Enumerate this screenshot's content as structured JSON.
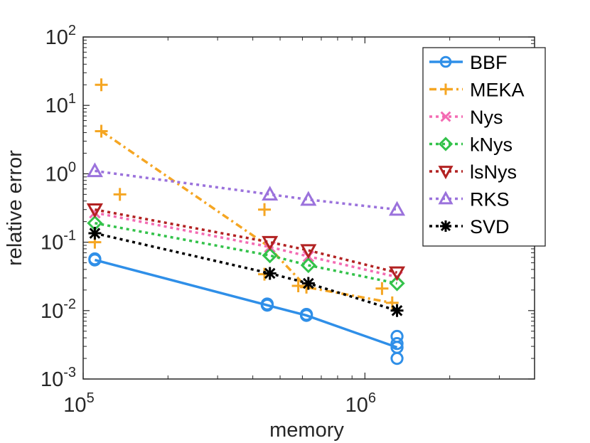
{
  "chart_data": {
    "type": "line",
    "xscale": "log",
    "yscale": "log",
    "xlabel": "memory",
    "ylabel": "relative error",
    "xlim": [
      100000,
      4000000
    ],
    "ylim": [
      0.001,
      100
    ],
    "xticks": [
      {
        "base": "10",
        "exp": "5"
      },
      {
        "base": "10",
        "exp": "6"
      }
    ],
    "yticks": [
      {
        "base": "10",
        "exp": "-3"
      },
      {
        "base": "10",
        "exp": "-2"
      },
      {
        "base": "10",
        "exp": "-1"
      },
      {
        "base": "10",
        "exp": "0"
      },
      {
        "base": "10",
        "exp": "1"
      },
      {
        "base": "10",
        "exp": "2"
      }
    ],
    "legend_position": "top-right",
    "series": [
      {
        "name": "BBF",
        "color": "#2f8fe8",
        "marker": "circle",
        "dash": "solid",
        "line_x": [
          110000,
          450000,
          620000,
          1300000
        ],
        "line_y": [
          0.055,
          0.012,
          0.0085,
          0.0029
        ],
        "scatter_x": [
          110000,
          110000,
          450000,
          450000,
          620000,
          620000,
          1300000,
          1300000,
          1300000,
          1300000
        ],
        "scatter_y": [
          0.055,
          0.057,
          0.012,
          0.0125,
          0.0085,
          0.0088,
          0.0042,
          0.0033,
          0.0029,
          0.002
        ]
      },
      {
        "name": "MEKA",
        "color": "#f5a623",
        "marker": "plus",
        "dash": "dashdot",
        "line_x": [
          116000,
          450000,
          620000,
          1250000
        ],
        "line_y": [
          4.2,
          0.09,
          0.022,
          0.013
        ],
        "scatter_x": [
          116000,
          116000,
          135000,
          110000,
          440000,
          440000,
          580000,
          620000,
          1150000,
          1250000
        ],
        "scatter_y": [
          20,
          4.2,
          0.5,
          0.1,
          0.3,
          0.034,
          0.023,
          0.022,
          0.021,
          0.013
        ]
      },
      {
        "name": "Nys",
        "color": "#f36bb3",
        "marker": "x",
        "dash": "dotted",
        "line_x": [
          110000,
          460000,
          630000,
          1300000
        ],
        "line_y": [
          0.27,
          0.085,
          0.062,
          0.031
        ],
        "scatter_x": [
          110000,
          460000,
          630000,
          1300000
        ],
        "scatter_y": [
          0.27,
          0.085,
          0.062,
          0.031
        ]
      },
      {
        "name": "kNys",
        "color": "#33c24a",
        "marker": "diamond",
        "dash": "dotted",
        "line_x": [
          110000,
          460000,
          630000,
          1300000
        ],
        "line_y": [
          0.19,
          0.064,
          0.046,
          0.025
        ],
        "scatter_x": [
          110000,
          460000,
          630000,
          1300000
        ],
        "scatter_y": [
          0.19,
          0.064,
          0.046,
          0.025
        ]
      },
      {
        "name": "lsNys",
        "color": "#b22222",
        "marker": "triangle-down",
        "dash": "dotted",
        "line_x": [
          110000,
          460000,
          630000,
          1300000
        ],
        "line_y": [
          0.3,
          0.1,
          0.076,
          0.036
        ],
        "scatter_x": [
          110000,
          460000,
          630000,
          1300000
        ],
        "scatter_y": [
          0.3,
          0.1,
          0.076,
          0.036
        ]
      },
      {
        "name": "RKS",
        "color": "#9b72dc",
        "marker": "triangle-up",
        "dash": "dotted",
        "line_x": [
          110000,
          460000,
          630000,
          1300000
        ],
        "line_y": [
          1.1,
          0.5,
          0.42,
          0.3
        ],
        "scatter_x": [
          110000,
          460000,
          630000,
          1300000
        ],
        "scatter_y": [
          1.1,
          0.5,
          0.42,
          0.3
        ]
      },
      {
        "name": "SVD",
        "color": "#000000",
        "marker": "asterisk",
        "dash": "dotted",
        "line_x": [
          110000,
          460000,
          630000,
          1300000
        ],
        "line_y": [
          0.135,
          0.035,
          0.025,
          0.01
        ],
        "scatter_x": [
          110000,
          460000,
          630000,
          1300000
        ],
        "scatter_y": [
          0.135,
          0.035,
          0.025,
          0.01
        ]
      }
    ]
  }
}
